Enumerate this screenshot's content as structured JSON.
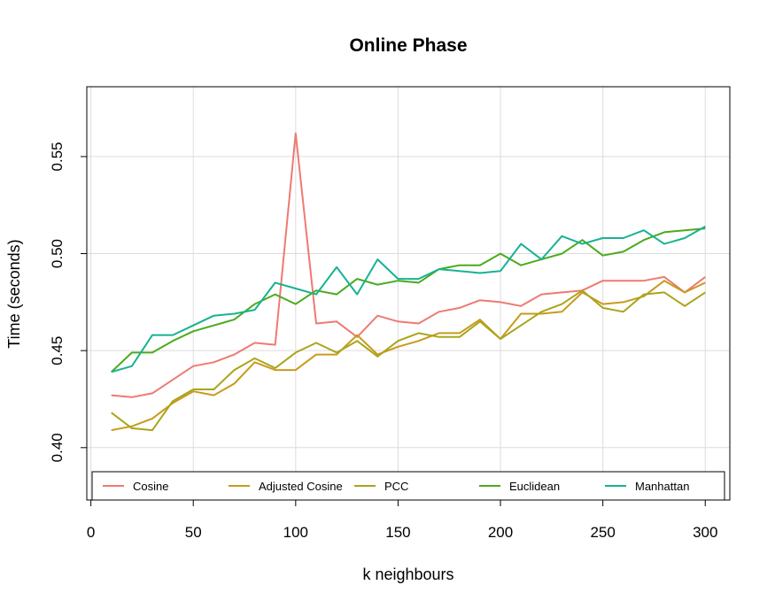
{
  "chart_data": {
    "type": "line",
    "title": "Online Phase",
    "xlabel": "k neighbours",
    "ylabel": "Time (seconds)",
    "xlim": [
      -2,
      312
    ],
    "ylim": [
      0.373,
      0.586
    ],
    "xticks": [
      0,
      50,
      100,
      150,
      200,
      250,
      300
    ],
    "yticks": [
      0.4,
      0.45,
      0.5,
      0.55
    ],
    "xtick_labels": [
      "0",
      "50",
      "100",
      "150",
      "200",
      "250",
      "300"
    ],
    "ytick_labels": [
      "0.40",
      "0.45",
      "0.50",
      "0.55"
    ],
    "grid": true,
    "legend_position": "bottom",
    "x": [
      10,
      20,
      30,
      40,
      50,
      60,
      70,
      80,
      90,
      100,
      110,
      120,
      130,
      140,
      150,
      160,
      170,
      180,
      190,
      200,
      210,
      220,
      230,
      240,
      250,
      260,
      270,
      280,
      290,
      300
    ],
    "series": [
      {
        "name": "Cosine",
        "color": "#ee7a73",
        "values": [
          0.427,
          0.426,
          0.428,
          0.435,
          0.442,
          0.444,
          0.448,
          0.454,
          0.453,
          0.562,
          0.464,
          0.465,
          0.457,
          0.468,
          0.465,
          0.464,
          0.47,
          0.472,
          0.476,
          0.475,
          0.473,
          0.479,
          0.48,
          0.481,
          0.486,
          0.486,
          0.486,
          0.488,
          0.48,
          0.488
        ]
      },
      {
        "name": "Adjusted Cosine",
        "color": "#c99a1c",
        "values": [
          0.409,
          0.411,
          0.415,
          0.423,
          0.429,
          0.427,
          0.433,
          0.444,
          0.44,
          0.44,
          0.448,
          0.448,
          0.458,
          0.448,
          0.452,
          0.455,
          0.459,
          0.459,
          0.466,
          0.456,
          0.469,
          0.469,
          0.47,
          0.48,
          0.474,
          0.475,
          0.478,
          0.486,
          0.48,
          0.485
        ]
      },
      {
        "name": "PCC",
        "color": "#a9a51b",
        "values": [
          0.418,
          0.41,
          0.409,
          0.424,
          0.43,
          0.43,
          0.44,
          0.446,
          0.441,
          0.449,
          0.454,
          0.449,
          0.455,
          0.447,
          0.455,
          0.459,
          0.457,
          0.457,
          0.465,
          0.456,
          0.463,
          0.47,
          0.474,
          0.481,
          0.472,
          0.47,
          0.479,
          0.48,
          0.473,
          0.48
        ]
      },
      {
        "name": "Euclidean",
        "color": "#4aab1d",
        "values": [
          0.439,
          0.449,
          0.449,
          0.455,
          0.46,
          0.463,
          0.466,
          0.474,
          0.479,
          0.474,
          0.481,
          0.479,
          0.487,
          0.484,
          0.486,
          0.485,
          0.492,
          0.494,
          0.494,
          0.5,
          0.494,
          0.497,
          0.5,
          0.507,
          0.499,
          0.501,
          0.507,
          0.511,
          0.512,
          0.513
        ]
      },
      {
        "name": "Manhattan",
        "color": "#17b291",
        "values": [
          0.439,
          0.442,
          0.458,
          0.458,
          0.463,
          0.468,
          0.469,
          0.471,
          0.485,
          0.482,
          0.479,
          0.493,
          0.479,
          0.497,
          0.487,
          0.487,
          0.492,
          0.491,
          0.49,
          0.491,
          0.505,
          0.497,
          0.509,
          0.505,
          0.508,
          0.508,
          0.512,
          0.505,
          0.508,
          0.514
        ]
      }
    ]
  }
}
